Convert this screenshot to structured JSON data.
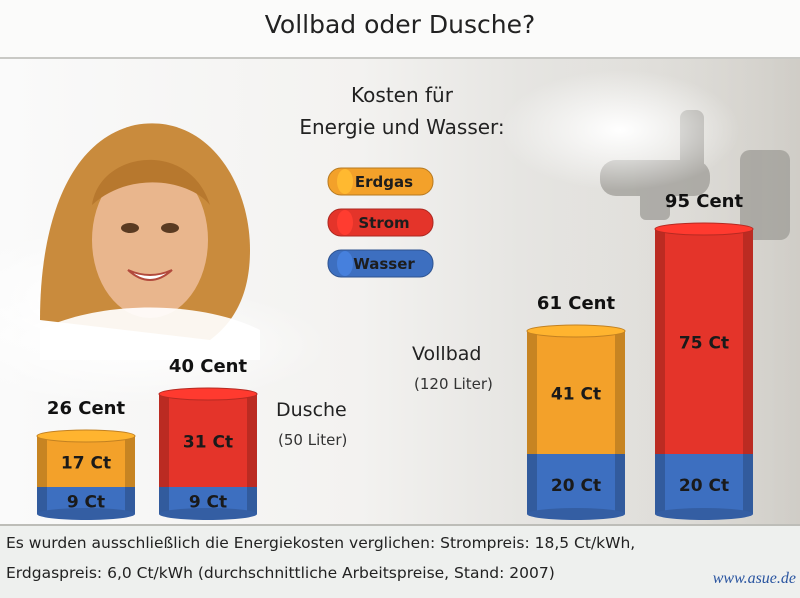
{
  "title": "Vollbad oder Dusche?",
  "colors": {
    "erdgas": "#f3a12a",
    "strom": "#e4342a",
    "wasser": "#3d6fc0"
  },
  "chart_data": {
    "type": "bar",
    "title": "Kosten für Energie und Wasser:",
    "legend": [
      "Erdgas",
      "Strom",
      "Wasser"
    ],
    "groups": [
      {
        "label": "Dusche",
        "sub": "(50 Liter)",
        "bars": [
          {
            "total_label": "26 Cent",
            "segments": [
              {
                "series": "Wasser",
                "value": 9,
                "label": "9 Ct"
              },
              {
                "series": "Erdgas",
                "value": 17,
                "label": "17 Ct"
              }
            ]
          },
          {
            "total_label": "40 Cent",
            "segments": [
              {
                "series": "Wasser",
                "value": 9,
                "label": "9 Ct"
              },
              {
                "series": "Strom",
                "value": 31,
                "label": "31 Ct"
              }
            ]
          }
        ]
      },
      {
        "label": "Vollbad",
        "sub": "(120 Liter)",
        "bars": [
          {
            "total_label": "61 Cent",
            "segments": [
              {
                "series": "Wasser",
                "value": 20,
                "label": "20 Ct"
              },
              {
                "series": "Erdgas",
                "value": 41,
                "label": "41 Ct"
              }
            ]
          },
          {
            "total_label": "95 Cent",
            "segments": [
              {
                "series": "Wasser",
                "value": 20,
                "label": "20 Ct"
              },
              {
                "series": "Strom",
                "value": 75,
                "label": "75 Ct"
              }
            ]
          }
        ]
      }
    ]
  },
  "footnote": {
    "line1": "Es wurden ausschließlich die Energiekosten verglichen: Strompreis: 18,5 Ct/kWh,",
    "line2": "Erdgaspreis: 6,0 Ct/kWh (durchschnittliche Arbeitspreise, Stand: 2007)",
    "url": "www.asue.de"
  }
}
